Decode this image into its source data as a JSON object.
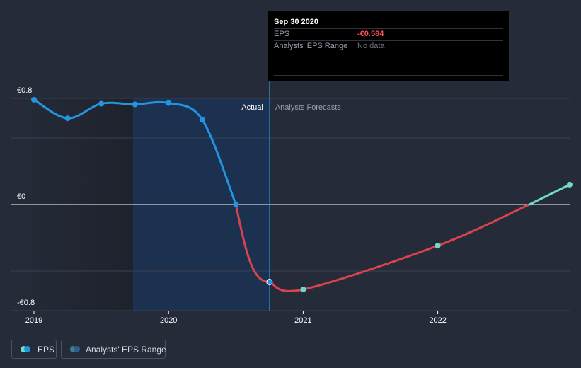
{
  "chart_data": {
    "type": "line",
    "title": "",
    "xlabel": "",
    "ylabel": "",
    "ylim": [
      -0.8,
      0.8
    ],
    "xlim": [
      2019.0,
      2022.98
    ],
    "y_ticks": [
      {
        "value": 0.8,
        "label": "€0.8"
      },
      {
        "value": 0.0,
        "label": "€0"
      },
      {
        "value": -0.8,
        "label": "-€0.8"
      }
    ],
    "x_ticks": [
      {
        "value": 2019,
        "label": "2019"
      },
      {
        "value": 2020,
        "label": "2020"
      },
      {
        "value": 2021,
        "label": "2021"
      },
      {
        "value": 2022,
        "label": "2022"
      }
    ],
    "actual_divider_x": 2020.75,
    "region_labels": {
      "actual": "Actual",
      "forecast": "Analysts Forecasts"
    },
    "series": [
      {
        "name": "EPS (actual, positive)",
        "color": "#2394df",
        "points": [
          [
            2019.0,
            0.79
          ],
          [
            2019.25,
            0.65
          ],
          [
            2019.5,
            0.76
          ],
          [
            2019.75,
            0.755
          ],
          [
            2020.0,
            0.765
          ],
          [
            2020.25,
            0.64
          ],
          [
            2020.5,
            0.0
          ]
        ]
      },
      {
        "name": "EPS (actual, negative)",
        "color": "#d9434e",
        "points": [
          [
            2020.5,
            0.0
          ],
          [
            2020.75,
            -0.584
          ]
        ]
      },
      {
        "name": "EPS forecast",
        "color": "#d9434e",
        "points": [
          [
            2020.75,
            -0.584
          ],
          [
            2021.0,
            -0.64
          ],
          [
            2022.0,
            -0.31
          ],
          [
            2022.68,
            0.0
          ]
        ]
      },
      {
        "name": "EPS forecast (positive)",
        "color": "#6cdcc8",
        "points": [
          [
            2022.68,
            0.0
          ],
          [
            2022.98,
            0.15
          ]
        ]
      }
    ],
    "markers": {
      "actual": [
        [
          2019.0,
          0.79
        ],
        [
          2019.25,
          0.65
        ],
        [
          2019.5,
          0.76
        ],
        [
          2019.75,
          0.755
        ],
        [
          2020.0,
          0.765
        ],
        [
          2020.25,
          0.64
        ],
        [
          2020.5,
          0.0
        ]
      ],
      "highlighted": [
        2020.75,
        -0.584
      ],
      "forecast": [
        [
          2021.0,
          -0.64
        ],
        [
          2022.0,
          -0.31
        ],
        [
          2022.98,
          0.15
        ]
      ]
    }
  },
  "tooltip": {
    "date": "Sep 30 2020",
    "eps_label": "EPS",
    "eps_value": "-€0.584",
    "range_label": "Analysts' EPS Range",
    "range_value": "No data"
  },
  "legend": {
    "eps_label": "EPS",
    "range_label": "Analysts' EPS Range"
  },
  "colors": {
    "background": "#252b39",
    "actual_shade": "#1c3050",
    "past_shade": "#1e222c",
    "eps_positive": "#2394df",
    "eps_negative": "#d9434e",
    "forecast_dot": "#6cdcc8",
    "grid": "#3a4050",
    "zero_line": "#ffffff"
  }
}
